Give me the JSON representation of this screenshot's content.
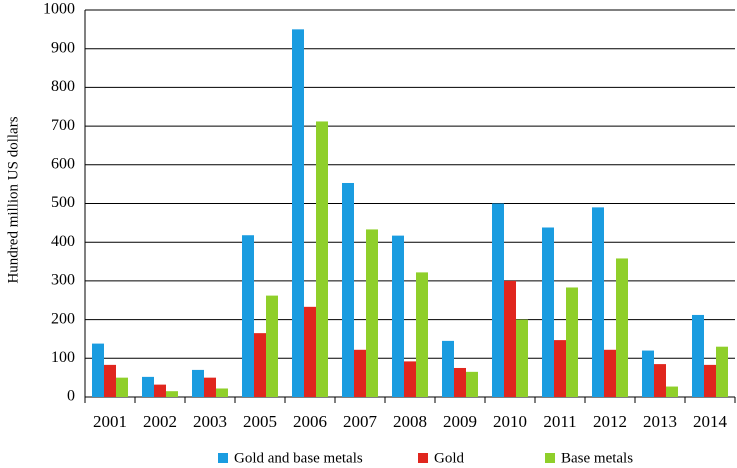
{
  "chart_data": {
    "type": "bar",
    "y_label": "Hundred million US dollars",
    "categories": [
      "2001",
      "2002",
      "2003",
      "2005",
      "2006",
      "2007",
      "2008",
      "2009",
      "2010",
      "2011",
      "2012",
      "2013",
      "2014"
    ],
    "series": [
      {
        "name": "Gold and base metals",
        "color": "#1a9ce0",
        "values": [
          138,
          52,
          70,
          418,
          950,
          553,
          417,
          145,
          500,
          438,
          490,
          120,
          212
        ]
      },
      {
        "name": "Gold",
        "color": "#e0261e",
        "values": [
          83,
          32,
          50,
          165,
          233,
          122,
          92,
          75,
          300,
          147,
          122,
          85,
          83
        ]
      },
      {
        "name": "Base metals",
        "color": "#8fcf2a",
        "values": [
          50,
          15,
          22,
          262,
          712,
          433,
          322,
          65,
          200,
          283,
          358,
          27,
          130
        ]
      }
    ],
    "ylim": [
      0,
      1000
    ],
    "yticks": [
      0,
      100,
      200,
      300,
      400,
      500,
      600,
      700,
      800,
      900,
      1000
    ],
    "grid": true
  }
}
